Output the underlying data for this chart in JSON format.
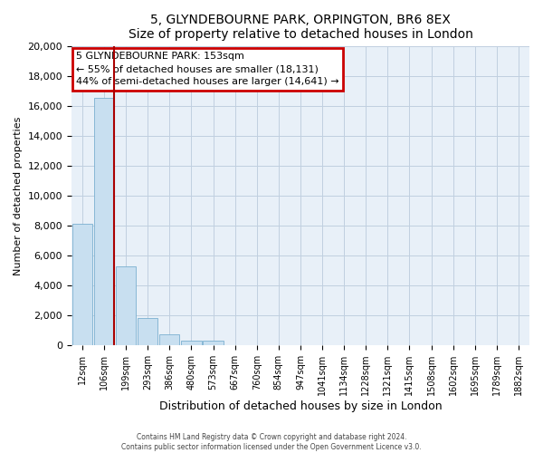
{
  "title": "5, GLYNDEBOURNE PARK, ORPINGTON, BR6 8EX",
  "subtitle": "Size of property relative to detached houses in London",
  "xlabel": "Distribution of detached houses by size in London",
  "ylabel": "Number of detached properties",
  "categories": [
    "12sqm",
    "106sqm",
    "199sqm",
    "293sqm",
    "386sqm",
    "480sqm",
    "573sqm",
    "667sqm",
    "760sqm",
    "854sqm",
    "947sqm",
    "1041sqm",
    "1134sqm",
    "1228sqm",
    "1321sqm",
    "1415sqm",
    "1508sqm",
    "1602sqm",
    "1695sqm",
    "1789sqm",
    "1882sqm"
  ],
  "values": [
    8100,
    16500,
    5300,
    1800,
    750,
    300,
    300,
    0,
    0,
    0,
    0,
    0,
    0,
    0,
    0,
    0,
    0,
    0,
    0,
    0,
    0
  ],
  "bar_color": "#c8dff0",
  "bar_edge_color": "#7ab0d0",
  "vline_color": "#aa0000",
  "annotation_title": "5 GLYNDEBOURNE PARK: 153sqm",
  "annotation_line1": "← 55% of detached houses are smaller (18,131)",
  "annotation_line2": "44% of semi-detached houses are larger (14,641) →",
  "annotation_box_edgecolor": "#cc0000",
  "ylim": [
    0,
    20000
  ],
  "yticks": [
    0,
    2000,
    4000,
    6000,
    8000,
    10000,
    12000,
    14000,
    16000,
    18000,
    20000
  ],
  "footer1": "Contains HM Land Registry data © Crown copyright and database right 2024.",
  "footer2": "Contains public sector information licensed under the Open Government Licence v3.0.",
  "bg_color": "#ffffff",
  "plot_bg_color": "#e8f0f8",
  "grid_color": "#c0cfe0"
}
